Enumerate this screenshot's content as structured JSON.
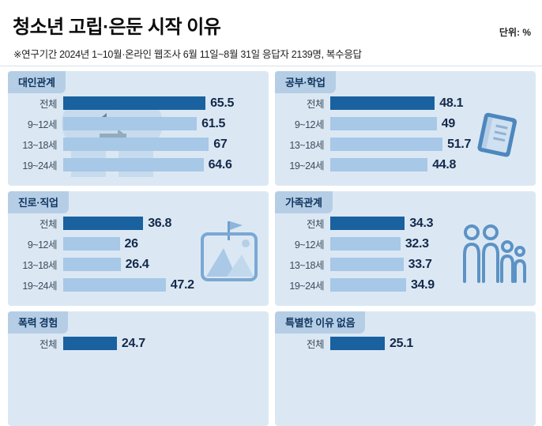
{
  "header": {
    "title": "청소년 고립·은둔 시작 이유",
    "unit": "단위: %",
    "subtitle": "※연구기간 2024년 1~10월·온라인 웹조사 6월 11일~8월 31일 응답자 2139명, 복수응답"
  },
  "colors": {
    "bar_total": "#1a619f",
    "bar_age": "#a7c8e7",
    "panel_bg": "#dbe8f4",
    "tab_bg": "#b5cee6",
    "value_text": "#14294a"
  },
  "panels": [
    {
      "title": "대인관계",
      "icon": "profile-heads-icon",
      "rows": [
        {
          "label": "전체",
          "value": "65.5"
        },
        {
          "label": "9~12세",
          "value": "61.5"
        },
        {
          "label": "13~18세",
          "value": "67"
        },
        {
          "label": "19~24세",
          "value": "64.6"
        }
      ]
    },
    {
      "title": "공부·학업",
      "icon": "book-icon",
      "rows": [
        {
          "label": "전체",
          "value": "48.1"
        },
        {
          "label": "9~12세",
          "value": "49"
        },
        {
          "label": "13~18세",
          "value": "51.7"
        },
        {
          "label": "19~24세",
          "value": "44.8"
        }
      ]
    },
    {
      "title": "진로·직업",
      "icon": "mountain-flag-icon",
      "rows": [
        {
          "label": "전체",
          "value": "36.8"
        },
        {
          "label": "9~12세",
          "value": "26"
        },
        {
          "label": "13~18세",
          "value": "26.4"
        },
        {
          "label": "19~24세",
          "value": "47.2"
        }
      ]
    },
    {
      "title": "가족관계",
      "icon": "family-icon",
      "rows": [
        {
          "label": "전체",
          "value": "34.3"
        },
        {
          "label": "9~12세",
          "value": "32.3"
        },
        {
          "label": "13~18세",
          "value": "33.7"
        },
        {
          "label": "19~24세",
          "value": "34.9"
        }
      ]
    },
    {
      "title": "폭력 경험",
      "icon": null,
      "rows": [
        {
          "label": "전체",
          "value": "24.7"
        }
      ]
    },
    {
      "title": "특별한 이유 없음",
      "icon": null,
      "rows": [
        {
          "label": "전체",
          "value": "25.1"
        }
      ]
    }
  ],
  "chart_data": [
    {
      "type": "bar",
      "orientation": "horizontal",
      "unit": "%",
      "title": "대인관계",
      "categories": [
        "전체",
        "9~12세",
        "13~18세",
        "19~24세"
      ],
      "values": [
        65.5,
        61.5,
        67,
        64.6
      ]
    },
    {
      "type": "bar",
      "orientation": "horizontal",
      "unit": "%",
      "title": "공부·학업",
      "categories": [
        "전체",
        "9~12세",
        "13~18세",
        "19~24세"
      ],
      "values": [
        48.1,
        49,
        51.7,
        44.8
      ]
    },
    {
      "type": "bar",
      "orientation": "horizontal",
      "unit": "%",
      "title": "진로·직업",
      "categories": [
        "전체",
        "9~12세",
        "13~18세",
        "19~24세"
      ],
      "values": [
        36.8,
        26,
        26.4,
        47.2
      ]
    },
    {
      "type": "bar",
      "orientation": "horizontal",
      "unit": "%",
      "title": "가족관계",
      "categories": [
        "전체",
        "9~12세",
        "13~18세",
        "19~24세"
      ],
      "values": [
        34.3,
        32.3,
        33.7,
        34.9
      ]
    },
    {
      "type": "bar",
      "orientation": "horizontal",
      "unit": "%",
      "title": "폭력 경험",
      "categories": [
        "전체"
      ],
      "values": [
        24.7
      ]
    },
    {
      "type": "bar",
      "orientation": "horizontal",
      "unit": "%",
      "title": "특별한 이유 없음",
      "categories": [
        "전체"
      ],
      "values": [
        25.1
      ]
    }
  ]
}
